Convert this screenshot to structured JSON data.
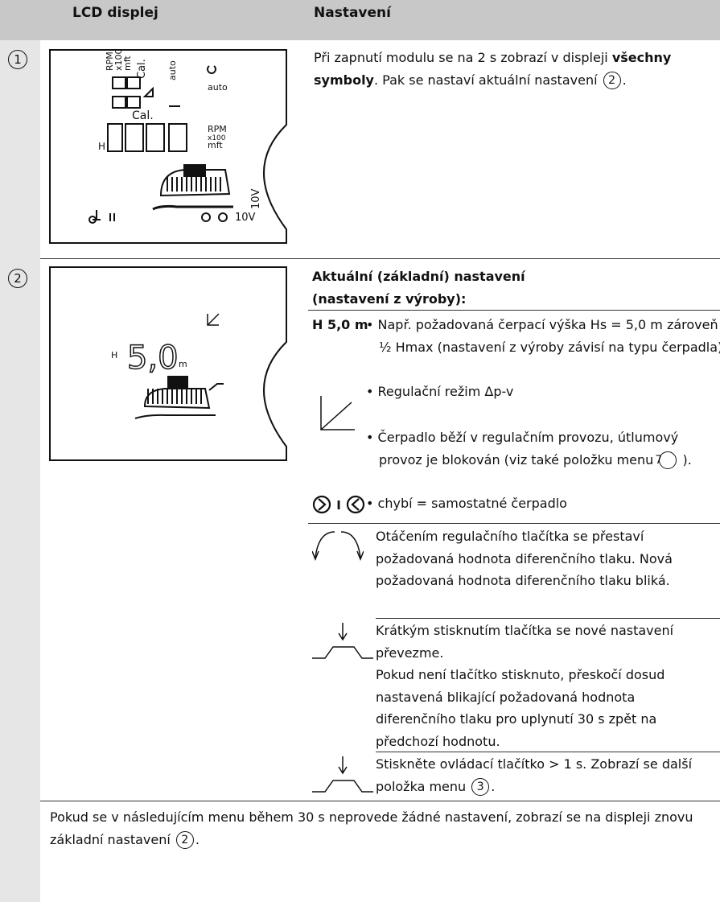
{
  "header": {
    "col1": "LCD displej",
    "col2": "Nastavení"
  },
  "rows": [
    {
      "number": "1",
      "lcd": {
        "labels": [
          "RPM",
          "x100",
          "mft",
          "Cal.",
          "auto",
          "auto",
          "Cal.",
          "H",
          "RPM",
          "x100",
          "mft",
          "10V",
          "10V"
        ]
      },
      "text": {
        "p1": "Při zapnutí modulu se na 2 s zobrazí v displeji ",
        "bold": "všechny symboly",
        "p2": ". Pak se nastaví aktuální nastavení ",
        "ref": "2",
        "p3": "."
      }
    },
    {
      "number": "2",
      "lcd": {
        "h": "H",
        "value": "5,0",
        "unit": "m"
      },
      "heading": [
        "Aktuální (základní) nastavení",
        "(nastavení z výroby):"
      ],
      "items": [
        {
          "label": "H 5,0 m",
          "text": "Např. požadovaná čerpací výška Hs = 5,0 m zároveň ½ Hmax (nastavení z výroby závisí na typu čerpadla)"
        },
        {
          "text": "Regulační režim Δp-v"
        },
        {
          "text": "Čerpadlo běží v regulačním provozu, útlumový provoz je blokován (viz také položku menu ",
          "ref": "7",
          "after": " )."
        },
        {
          "label": "I",
          "text": "chybí = samostatné čerpadlo"
        }
      ],
      "actions": [
        {
          "text": "Otáčením regulačního tlačítka se přestaví požadovaná hodnota diferenčního tlaku. Nová požadovaná hodnota diferenčního tlaku bliká."
        },
        {
          "text": "Krátkým stisknutím tlačítka se nové nastavení převezme.",
          "text2": "Pokud není tlačítko stisknuto, přeskočí dosud nastavená blikající požadovaná hodnota diferenčního tlaku pro uplynutí 30 s zpět na předchozí hodnotu."
        },
        {
          "text": "Stiskněte ovládací tlačítko > 1 s. Zobrazí se další položka menu ",
          "ref": "3",
          "after": "."
        }
      ]
    }
  ],
  "footer": {
    "text": "Pokud se v následujícím menu během 30 s neprovede žádné nastavení, zobrazí se na displeji znovu základní nastavení ",
    "ref": "2",
    "after": "."
  }
}
